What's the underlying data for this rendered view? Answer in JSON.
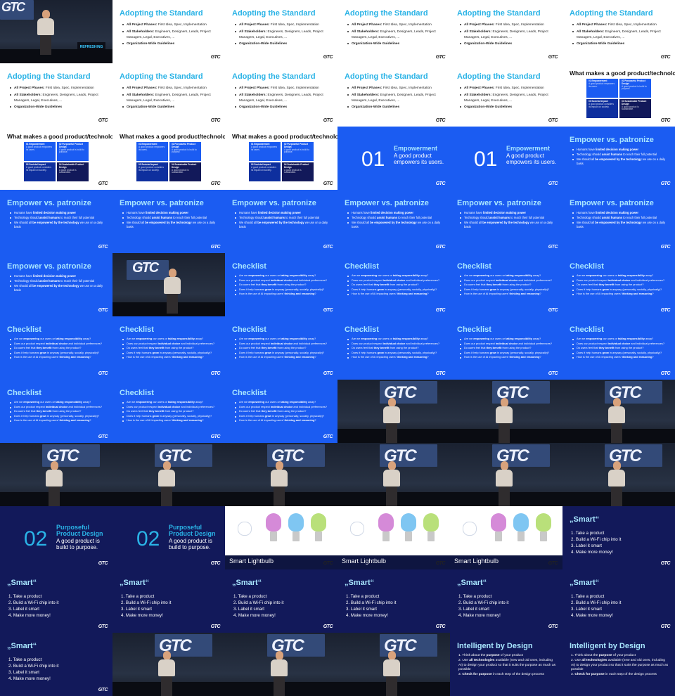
{
  "contact_sheet": {
    "columns": 6,
    "rows": 11,
    "logo_text": "GTC",
    "stage_screen_text": "GTC",
    "stage_banner_text": "REFRESHING",
    "colors": {
      "white_slide": "#ffffff",
      "blue_slide": "#1b5cf2",
      "navy_slide": "#12195a",
      "title_cyan": "#2ab3e6",
      "title_light": "#a8e6ff"
    }
  },
  "slides": {
    "adopt": {
      "title": "Adopting the Standard",
      "bullets": [
        {
          "label": "All Project Phases:",
          "text": " First Idea, Spec, Implementation"
        },
        {
          "label": "All Stakeholders:",
          "text": " Engineers, Designers, Leads, Project Managers, Legal, Executives, ..."
        },
        {
          "label": "Organization-Wide Guidelines",
          "text": ""
        }
      ]
    },
    "good": {
      "title": "What makes a good product/technology?",
      "quadrants": [
        {
          "title": "01 Empowerment",
          "sub": "A good product empowers its users."
        },
        {
          "title": "02 Purposeful Product Design",
          "sub": "A good product is build to purpose."
        },
        {
          "title": "03 Societal Impact",
          "sub": "A good product considers its impact on society."
        },
        {
          "title": "04 Sustainable Product Design",
          "sub": "A good product is sustainable."
        }
      ]
    },
    "empower_section": {
      "number": "01",
      "title": "Empowerment",
      "description": "A good product empowers its users."
    },
    "patronize": {
      "title": "Empower vs. patronize",
      "bullets": [
        {
          "pre": "Humans have ",
          "bold": "limited decision making power",
          "post": ""
        },
        {
          "pre": "Technology should ",
          "bold": "assist humans",
          "post": " to reach their full potential"
        },
        {
          "pre": "We should all ",
          "bold": "be empowered by the technology",
          "post": " we use on a daily basis"
        }
      ]
    },
    "checklist": {
      "title": "Checklist",
      "bullets": [
        {
          "pre": "Are we ",
          "bold": "empowering",
          "mid": " our users or ",
          "bold2": "taking responsibility",
          "post": " away?"
        },
        {
          "pre": "Does our product respect ",
          "bold": "individual choice",
          "mid": " and individual preferences?",
          "bold2": "",
          "post": ""
        },
        {
          "pre": "Do users feel that ",
          "bold": "they benefit",
          "mid": " from using the product?",
          "bold2": "",
          "post": ""
        },
        {
          "pre": "Does it help humans ",
          "bold": "grow",
          "mid": " in anyway (personally, socially, physically)?",
          "bold2": "",
          "post": ""
        },
        {
          "pre": "How is the use of AI impacting users' ",
          "bold": "thinking and reasoning",
          "mid": "?",
          "bold2": "",
          "post": ""
        }
      ]
    },
    "purpose_section": {
      "number": "02",
      "title_line1": "Purposeful",
      "title_line2": "Product Design",
      "description_line1": "A good product is",
      "description_line2": "build to purpose."
    },
    "bulb": {
      "caption": "Smart Lightbulb"
    },
    "smart": {
      "title": "„Smart“",
      "steps": [
        "1. Take a product",
        "2. Build a Wi-Fi chip into it",
        "3. Label it smart",
        "4. Make more money!"
      ]
    },
    "intelligent": {
      "title": "Intelligent by Design",
      "steps": [
        {
          "pre": "1. Think about the ",
          "bold": "purpose",
          "post": " of your product"
        },
        {
          "pre": "2. Use ",
          "bold": "all technologies",
          "post": " available (new and old ones, including AI) to design your product so that it suits the purpose as much as possible"
        },
        {
          "pre": "3. ",
          "bold": "Check for purpose",
          "post": " in each step of the design process"
        }
      ]
    }
  },
  "sequence": [
    "stage1",
    "adopt",
    "adopt",
    "adopt",
    "adopt",
    "adopt",
    "adopt",
    "adopt",
    "adopt",
    "adopt",
    "adopt",
    "good",
    "good",
    "good",
    "good",
    "empower_section",
    "empower_section",
    "patronize",
    "patronize",
    "patronize",
    "patronize",
    "patronize",
    "patronize",
    "patronize",
    "patronize",
    "stage2",
    "checklist",
    "checklist",
    "checklist",
    "checklist",
    "checklist",
    "checklist",
    "checklist",
    "checklist",
    "checklist",
    "checklist",
    "checklist",
    "checklist",
    "checklist",
    "stage",
    "stage",
    "stage",
    "stage",
    "stage",
    "stage",
    "stage",
    "stage",
    "stage",
    "purpose_section",
    "purpose_section",
    "bulb",
    "bulb",
    "bulb",
    "smart",
    "smart",
    "smart",
    "smart",
    "smart",
    "smart",
    "smart",
    "smart",
    "stage",
    "stage",
    "stage",
    "intelligent",
    "intelligent"
  ]
}
